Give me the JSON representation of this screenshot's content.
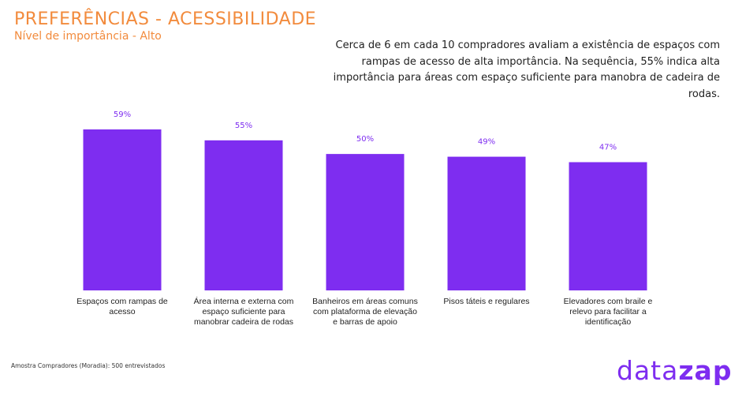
{
  "header": {
    "title": "PREFERÊNCIAS - ACESSIBILIDADE",
    "subtitle": "Nível de importância - Alto"
  },
  "description": "Cerca de 6 em cada 10 compradores avaliam a existência de espaços com rampas de acesso de alta importância. Na sequência, 55% indica alta importância para áreas com espaço suficiente para manobra de cadeira de rodas.",
  "footnote": "Amostra Compradores (Moradia): 500 entrevistados",
  "brand": {
    "part1": "data",
    "part2": "zap"
  },
  "colors": {
    "bar": "#7e2df0",
    "accent": "#f28b3d",
    "value_label": "#7e2df0"
  },
  "chart_data": {
    "type": "bar",
    "categories": [
      [
        "Espaços com rampas de",
        "acesso"
      ],
      [
        "Área interna e externa com",
        "espaço suficiente para",
        "manobrar cadeira de rodas"
      ],
      [
        "Banheiros em áreas comuns",
        "com plataforma de elevação",
        "e barras de apoio"
      ],
      [
        "Pisos táteis e regulares"
      ],
      [
        "Elevadores com braile e",
        "relevo para facilitar a",
        "identificação"
      ]
    ],
    "values": [
      59,
      55,
      50,
      49,
      47
    ],
    "value_labels": [
      "59%",
      "55%",
      "50%",
      "49%",
      "47%"
    ],
    "unit": "%",
    "ylim": [
      0,
      59
    ]
  }
}
